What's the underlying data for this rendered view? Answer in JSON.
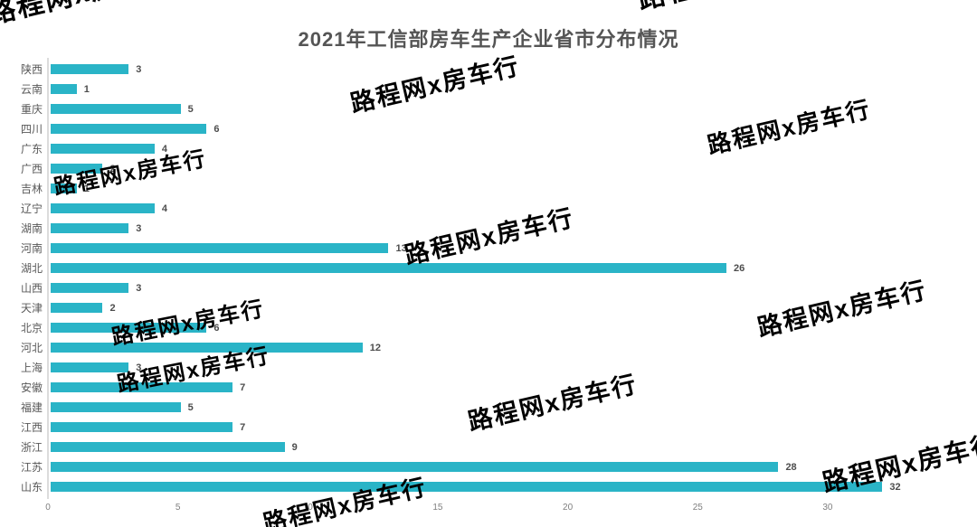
{
  "title": "2021年工信部房车生产企业省市分布情况",
  "watermark": {
    "text": "路程网x房车行"
  },
  "chart_data": {
    "type": "bar",
    "orientation": "horizontal",
    "title": "2021年工信部房车生产企业省市分布情况",
    "categories": [
      "陕西",
      "云南",
      "重庆",
      "四川",
      "广东",
      "广西",
      "吉林",
      "辽宁",
      "湖南",
      "河南",
      "湖北",
      "山西",
      "天津",
      "北京",
      "河北",
      "上海",
      "安徽",
      "福建",
      "江西",
      "浙江",
      "江苏",
      "山东"
    ],
    "values": [
      3,
      1,
      5,
      6,
      4,
      2,
      1,
      4,
      3,
      13,
      26,
      3,
      2,
      6,
      12,
      3,
      7,
      5,
      7,
      9,
      28,
      32
    ],
    "xlabel": "",
    "ylabel": "",
    "x_ticks": [
      0,
      5,
      10,
      15,
      20,
      25,
      30
    ],
    "xlim": [
      0,
      35
    ],
    "grid": false,
    "legend": false,
    "bar_color": "#2ab4c7",
    "title_color": "#555555",
    "label_color": "#595959",
    "value_label_color": "#4d4d4d",
    "tick_label_color": "#7f7f7f",
    "axis_line_color": "#dcdcdc"
  }
}
